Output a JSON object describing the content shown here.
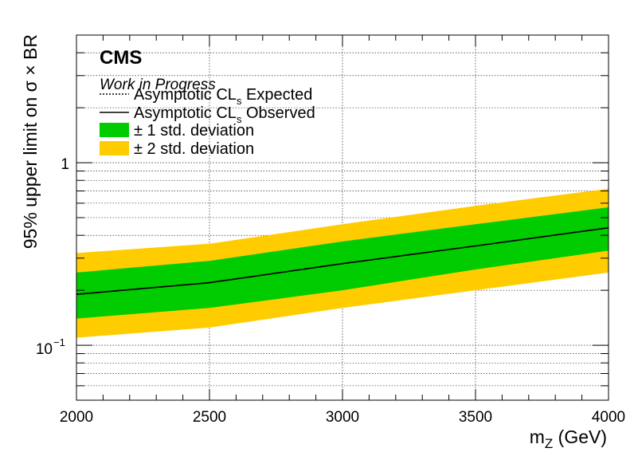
{
  "chart_data": {
    "type": "area",
    "x": [
      2000,
      2500,
      3000,
      3500,
      4000
    ],
    "series": [
      {
        "name": "Asymptotic CL_s Expected",
        "values": [
          0.19,
          0.22,
          0.28,
          0.35,
          0.44
        ]
      },
      {
        "name": "Asymptotic CL_s Observed",
        "values": [
          0.19,
          0.22,
          0.28,
          0.35,
          0.44
        ]
      },
      {
        "name": "± 1 std. deviation",
        "lower": [
          0.14,
          0.16,
          0.2,
          0.26,
          0.33
        ],
        "upper": [
          0.25,
          0.29,
          0.37,
          0.46,
          0.57
        ]
      },
      {
        "name": "± 2 std. deviation",
        "lower": [
          0.11,
          0.125,
          0.16,
          0.2,
          0.25
        ],
        "upper": [
          0.32,
          0.36,
          0.46,
          0.58,
          0.72
        ]
      }
    ],
    "xlim": [
      2000,
      4000
    ],
    "ylim": [
      0.05,
      5
    ],
    "yscale": "log",
    "grid": true,
    "legend": "top-left",
    "colors": {
      "one_sigma": "#00cc00",
      "two_sigma": "#ffcc00",
      "line": "#000000"
    },
    "x_ticks": [
      "2000",
      "2500",
      "3000",
      "3500",
      "4000"
    ],
    "y_tick_one": "1",
    "y_tick_tenth_base": "10",
    "y_tick_tenth_exp": "−1",
    "xlabel_main": "m",
    "xlabel_sub": "Z",
    "xlabel_unit": " (GeV)",
    "ylabel": "95% upper limit on  σ × BR",
    "experiment": "CMS",
    "status": "Work in Progress",
    "legend_entries": {
      "expected_pre": "Asymptotic CL",
      "expected_sub": "s",
      "expected_post": " Expected",
      "observed_pre": "Asymptotic CL",
      "observed_sub": "s",
      "observed_post": " Observed",
      "one_sigma": "± 1 std. deviation",
      "two_sigma": "± 2 std. deviation"
    }
  }
}
